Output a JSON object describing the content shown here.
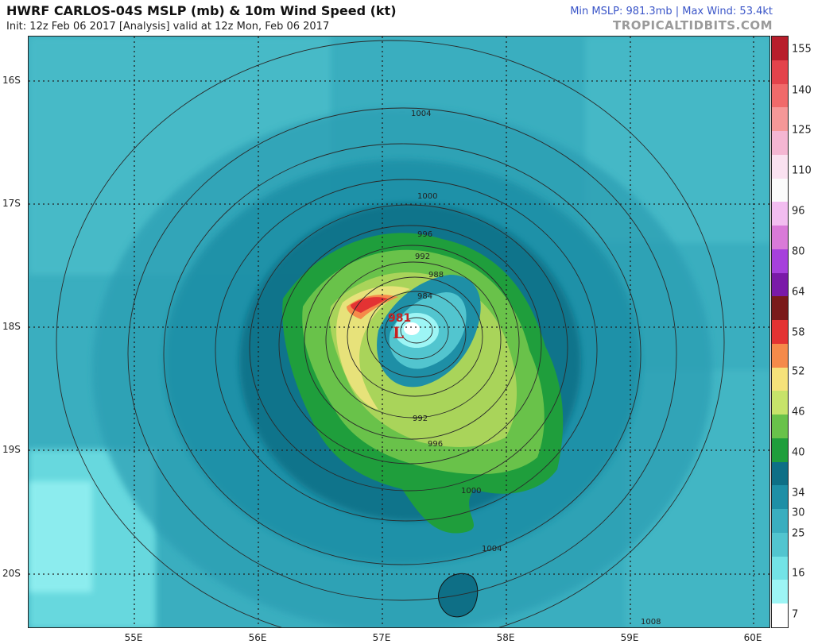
{
  "header": {
    "title": "HWRF CARLOS-04S MSLP (mb) & 10m Wind Speed (kt)",
    "subtitle": "Init: 12z Feb 06 2017   [Analysis]   valid at 12z Mon, Feb 06 2017",
    "stats": "Min MSLP: 981.3mb | Max Wind: 53.4kt",
    "brand": "TROPICALTIDBITS.COM"
  },
  "map": {
    "lat_labels": [
      "16S",
      "17S",
      "18S",
      "19S",
      "20S"
    ],
    "lon_labels": [
      "55E",
      "56E",
      "57E",
      "58E",
      "59E",
      "60E"
    ],
    "isobar_labels": [
      "1004",
      "1000",
      "996",
      "992",
      "988",
      "984",
      "992",
      "996",
      "1000",
      "1004",
      "1008"
    ],
    "low_pressure_value": "981",
    "low_symbol": "L"
  },
  "colorbar": {
    "labels": [
      "155",
      "140",
      "125",
      "110",
      "96",
      "80",
      "64",
      "58",
      "52",
      "46",
      "40",
      "34",
      "30",
      "25",
      "16",
      "7"
    ],
    "colors": [
      "#b81d2b",
      "#e3434b",
      "#f06a6a",
      "#f59898",
      "#f4b6d2",
      "#fae1f0",
      "#fbfbfb",
      "#f2bdf0",
      "#d97ad8",
      "#a640dc",
      "#7a1aa8",
      "#7a1a1a",
      "#e33333",
      "#f58a4a",
      "#f6e27a",
      "#c7e36a",
      "#69c24a",
      "#1f9e3c",
      "#0e6f86",
      "#1e8fa6",
      "#3aaebf",
      "#52c5cf",
      "#73e3e6",
      "#9df5f5",
      "#ffffff"
    ],
    "icon": "wind-speed-scale-icon"
  }
}
